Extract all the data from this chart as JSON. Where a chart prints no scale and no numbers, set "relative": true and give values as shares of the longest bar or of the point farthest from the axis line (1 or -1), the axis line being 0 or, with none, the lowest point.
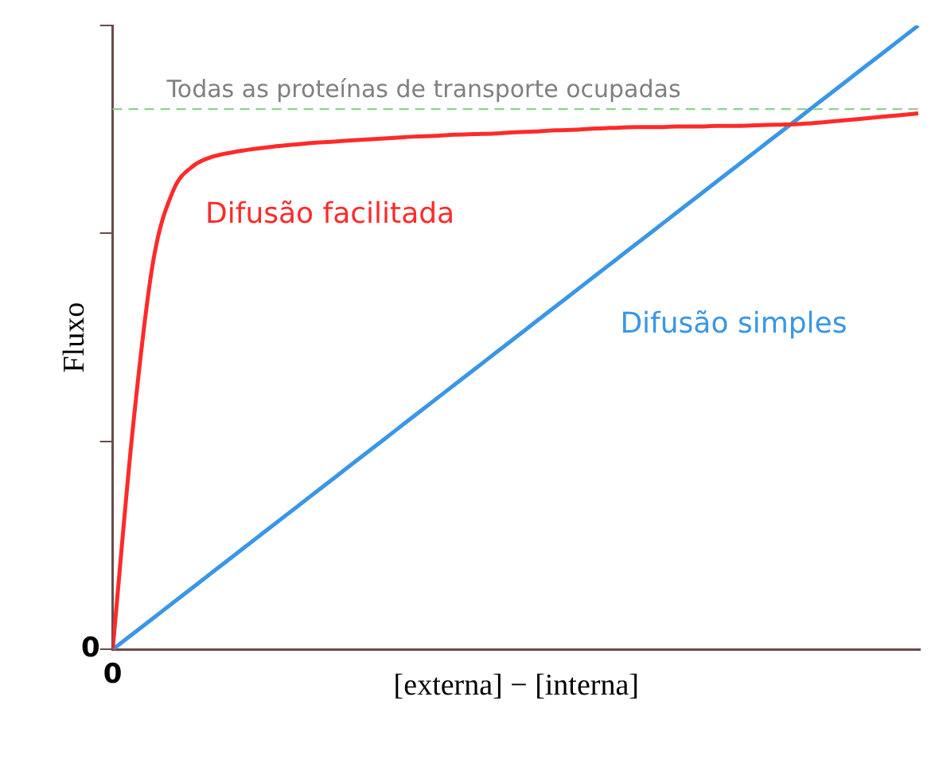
{
  "chart_data": {
    "type": "line",
    "relative": true,
    "xlabel": "[externa] − [interna]",
    "ylabel": "Fluxo",
    "annotations": [
      "0",
      "0"
    ],
    "categories": [
      null,
      null,
      null,
      null,
      null,
      null,
      null,
      null,
      null,
      null,
      null,
      null,
      null,
      null,
      null,
      null,
      null,
      null,
      null,
      null,
      null,
      null,
      null,
      null,
      null,
      null,
      null,
      null,
      null,
      null,
      null,
      null,
      null,
      null,
      null,
      null,
      null,
      null,
      null,
      null,
      null
    ],
    "grid": false,
    "legend": false,
    "marker": "none",
    "line_style": "solid",
    "series": [
      {
        "name": "Difusão facilitada",
        "color": "#ff2a2a",
        "values": [
          0,
          0.354,
          0.62,
          0.735,
          0.775,
          0.79,
          0.797,
          0.802,
          0.806,
          0.809,
          0.812,
          0.814,
          0.816,
          0.818,
          0.82,
          0.822,
          0.823,
          0.825,
          0.826,
          0.827,
          0.829,
          0.83,
          0.832,
          0.833,
          0.835,
          0.836,
          0.837,
          0.837,
          0.838,
          0.838,
          0.839,
          0.839,
          0.84,
          0.841,
          0.842,
          0.844,
          0.847,
          0.85,
          0.853,
          0.856,
          0.859
        ]
      },
      {
        "name": "Difusão simples",
        "color": "#3a96e6",
        "values": [
          0,
          0.025,
          0.05,
          0.075,
          0.1,
          0.125,
          0.15,
          0.175,
          0.2,
          0.225,
          0.25,
          0.275,
          0.3,
          0.325,
          0.35,
          0.375,
          0.4,
          0.425,
          0.45,
          0.475,
          0.5,
          0.525,
          0.55,
          0.575,
          0.6,
          0.625,
          0.65,
          0.675,
          0.7,
          0.725,
          0.75,
          0.775,
          0.8,
          0.825,
          0.85,
          0.875,
          0.9,
          0.925,
          0.95,
          0.975,
          1
        ]
      }
    ],
    "ref_lines": [
      {
        "axis": "y",
        "value": 0.866,
        "label": "Todas as proteínas de transporte ocupadas",
        "color": "#8fd18f",
        "line_style": "dashed"
      }
    ]
  }
}
